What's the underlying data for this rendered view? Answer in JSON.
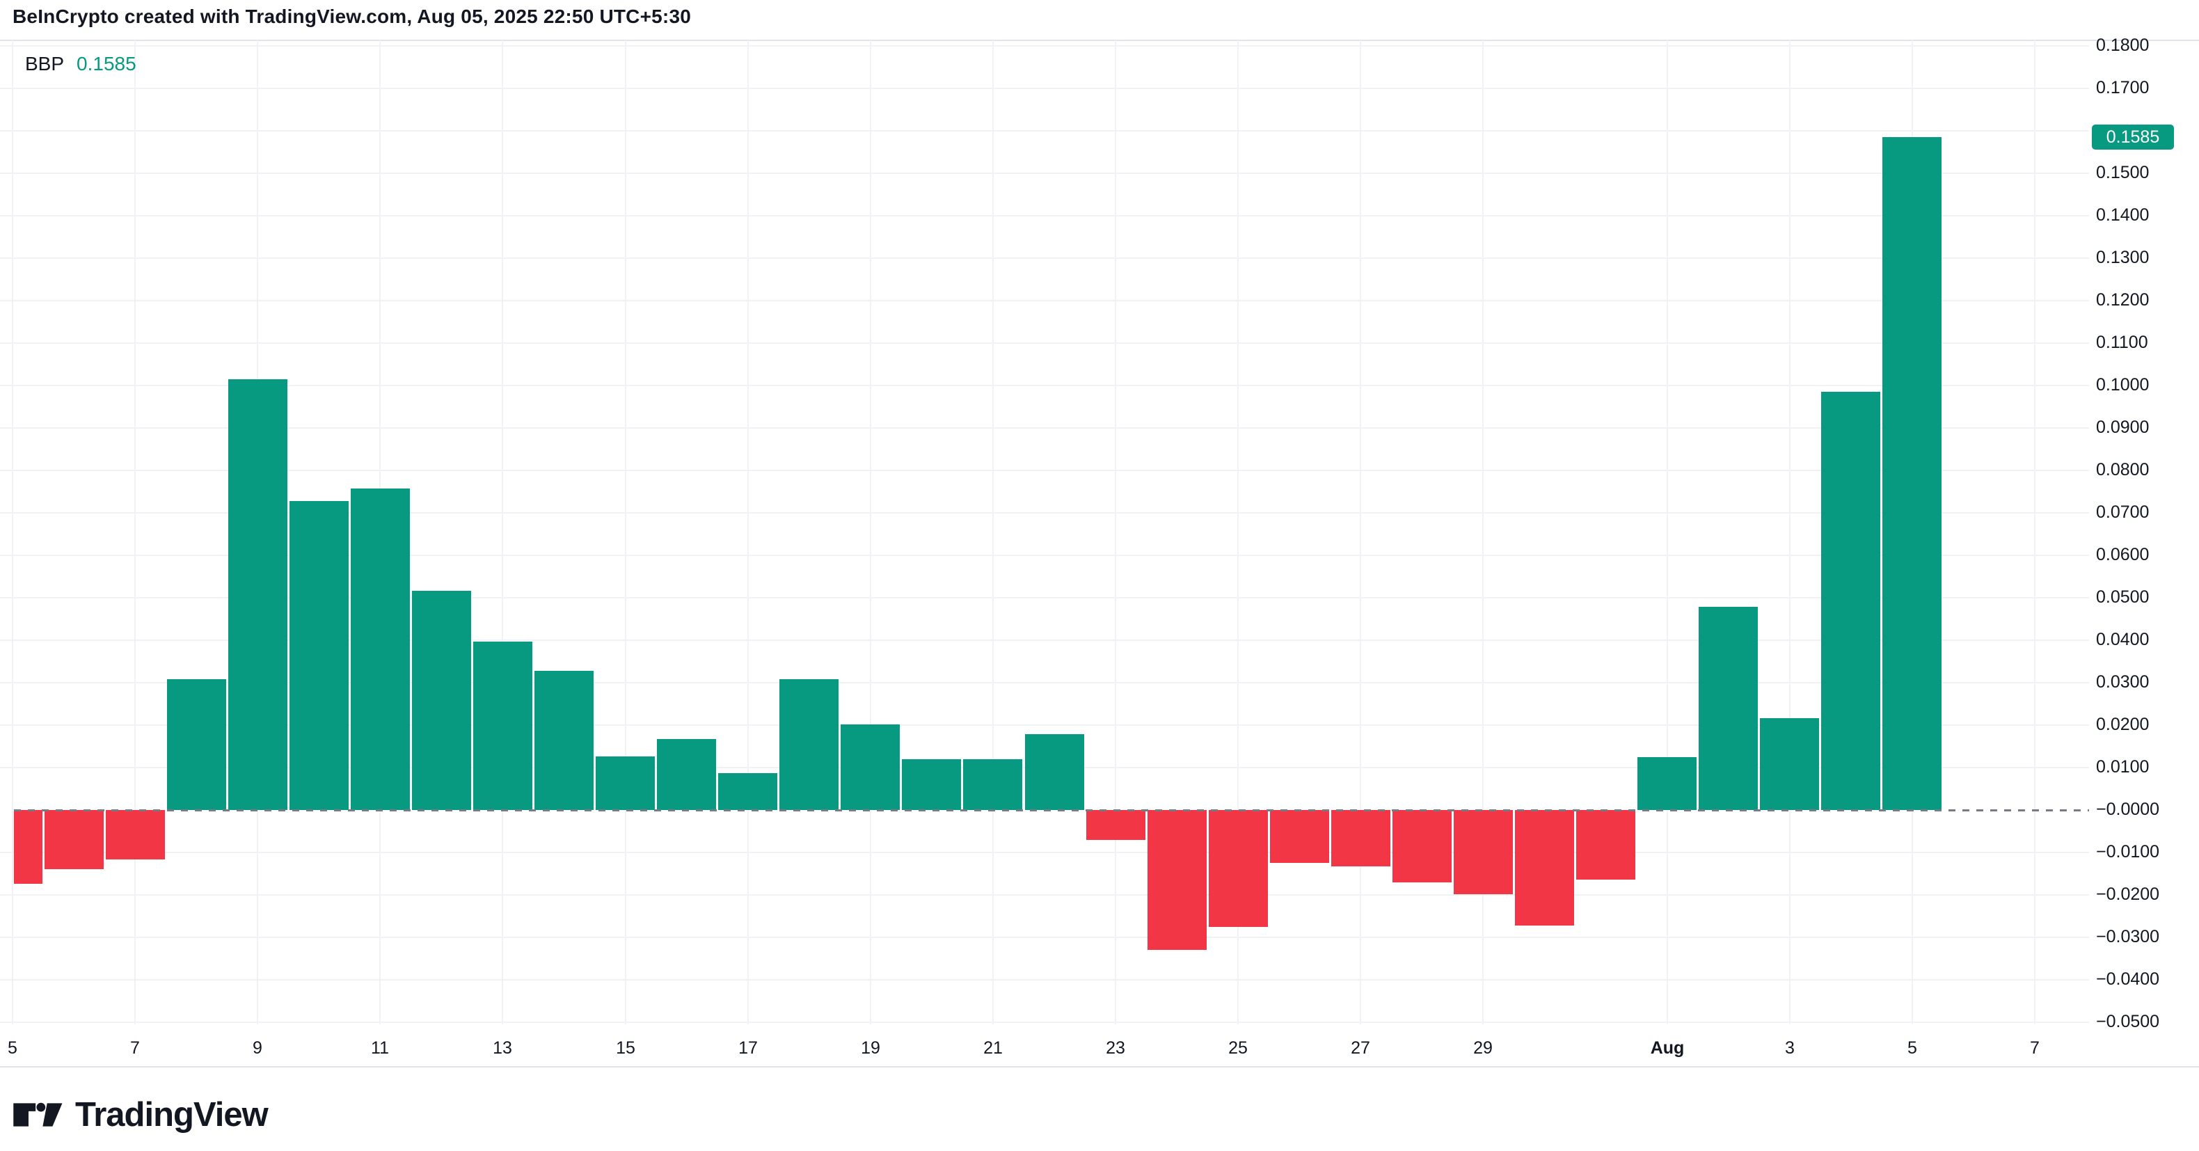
{
  "header": {
    "title": "BeInCrypto created with TradingView.com, Aug 05, 2025 22:50 UTC+5:30"
  },
  "legend": {
    "indicator": "BBP",
    "value": "0.1585",
    "value_color": "#089981"
  },
  "price_axis": {
    "current_badge": {
      "text": "0.1585",
      "bg": "#089981",
      "text_color": "#FFFFFF"
    }
  },
  "footer": {
    "brand": "TradingView"
  },
  "chart_data": {
    "type": "bar",
    "indicator": "BBP",
    "legend_position": "top-left",
    "grid": true,
    "ylim": [
      -0.05,
      0.18
    ],
    "grid_step": 0.01,
    "zero_line": "dashed",
    "current_value": 0.1585,
    "colors": {
      "positive": "#089981",
      "negative": "#F23645",
      "zero_line": "#787B86",
      "grid": "#F0F2F5"
    },
    "categories": [
      "Jul 5",
      "Jul 6",
      "Jul 7",
      "Jul 8",
      "Jul 9",
      "Jul 10",
      "Jul 11",
      "Jul 12",
      "Jul 13",
      "Jul 14",
      "Jul 15",
      "Jul 16",
      "Jul 17",
      "Jul 18",
      "Jul 19",
      "Jul 20",
      "Jul 21",
      "Jul 22",
      "Jul 23",
      "Jul 24",
      "Jul 25",
      "Jul 26",
      "Jul 27",
      "Jul 28",
      "Jul 29",
      "Jul 30",
      "Jul 31",
      "Aug 1",
      "Aug 2",
      "Aug 3",
      "Aug 4",
      "Aug 5"
    ],
    "values": [
      -0.0174,
      -0.014,
      -0.0117,
      0.0309,
      0.1015,
      0.0728,
      0.0758,
      0.0516,
      0.0397,
      0.0328,
      0.0127,
      0.0168,
      0.0087,
      0.0308,
      0.0202,
      0.012,
      0.012,
      0.0179,
      -0.007,
      -0.0329,
      -0.0276,
      -0.0125,
      -0.0133,
      -0.017,
      -0.0198,
      -0.0272,
      -0.0164,
      0.0125,
      0.0478,
      0.0216,
      0.0985,
      0.1585
    ],
    "y_tick_labels": [
      {
        "value": 0.18,
        "label": "0.1800"
      },
      {
        "value": 0.17,
        "label": "0.1700"
      },
      {
        "value": 0.15,
        "label": "0.1500"
      },
      {
        "value": 0.14,
        "label": "0.1400"
      },
      {
        "value": 0.13,
        "label": "0.1300"
      },
      {
        "value": 0.12,
        "label": "0.1200"
      },
      {
        "value": 0.11,
        "label": "0.1100"
      },
      {
        "value": 0.1,
        "label": "0.1000"
      },
      {
        "value": 0.09,
        "label": "0.0900"
      },
      {
        "value": 0.08,
        "label": "0.0800"
      },
      {
        "value": 0.07,
        "label": "0.0700"
      },
      {
        "value": 0.06,
        "label": "0.0600"
      },
      {
        "value": 0.05,
        "label": "0.0500"
      },
      {
        "value": 0.04,
        "label": "0.0400"
      },
      {
        "value": 0.03,
        "label": "0.0300"
      },
      {
        "value": 0.02,
        "label": "0.0200"
      },
      {
        "value": 0.01,
        "label": "0.0100"
      },
      {
        "value": 0.0,
        "label": "−0.0000"
      },
      {
        "value": -0.01,
        "label": "−0.0100"
      },
      {
        "value": -0.02,
        "label": "−0.0200"
      },
      {
        "value": -0.03,
        "label": "−0.0300"
      },
      {
        "value": -0.04,
        "label": "−0.0400"
      },
      {
        "value": -0.05,
        "label": "−0.0500"
      }
    ],
    "x_tick_labels": [
      {
        "index": 0,
        "label": "5"
      },
      {
        "index": 2,
        "label": "7"
      },
      {
        "index": 4,
        "label": "9"
      },
      {
        "index": 6,
        "label": "11"
      },
      {
        "index": 8,
        "label": "13"
      },
      {
        "index": 10,
        "label": "15"
      },
      {
        "index": 12,
        "label": "17"
      },
      {
        "index": 14,
        "label": "19"
      },
      {
        "index": 16,
        "label": "21"
      },
      {
        "index": 18,
        "label": "23"
      },
      {
        "index": 20,
        "label": "25"
      },
      {
        "index": 22,
        "label": "27"
      },
      {
        "index": 24,
        "label": "29"
      },
      {
        "index": 27,
        "label": "Aug",
        "bold": true
      },
      {
        "index": 29,
        "label": "3"
      },
      {
        "index": 31,
        "label": "5"
      },
      {
        "index": 33,
        "label": "7"
      }
    ]
  }
}
